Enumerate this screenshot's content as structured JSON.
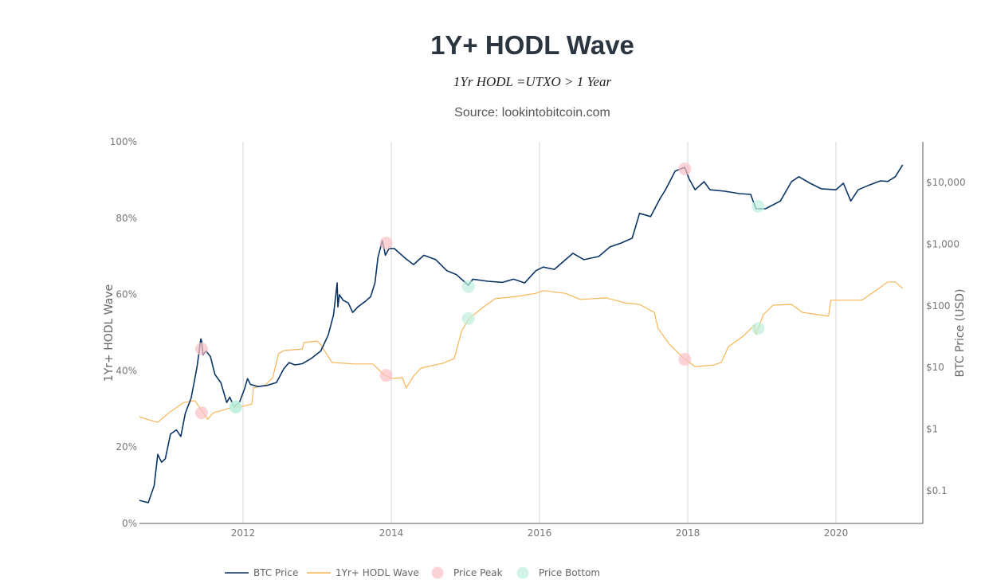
{
  "chart_data": {
    "type": "line",
    "title": "1Y+ HODL Wave",
    "subtitle": "1Yr HODL =UTXO > 1 Year",
    "source": "Source: lookintobitcoin.com",
    "xlabel": "",
    "ylabel_left": "1Yr+ HODL Wave",
    "ylabel_right": "BTC Price (USD)",
    "x_range": [
      2010.6,
      2021.05
    ],
    "x_ticks": [
      {
        "value": 2012,
        "label": "2012"
      },
      {
        "value": 2014,
        "label": "2014"
      },
      {
        "value": 2016,
        "label": "2016"
      },
      {
        "value": 2018,
        "label": "2018"
      },
      {
        "value": 2020,
        "label": "2020"
      }
    ],
    "y_left_range": [
      0,
      100
    ],
    "y_left_ticks": [
      {
        "value": 0,
        "label": "0%"
      },
      {
        "value": 20,
        "label": "20%"
      },
      {
        "value": 40,
        "label": "40%"
      },
      {
        "value": 60,
        "label": "60%"
      },
      {
        "value": 80,
        "label": "80%"
      },
      {
        "value": 100,
        "label": "100%"
      }
    ],
    "y_right_scale": "log",
    "y_right_range": [
      0.02,
      50000
    ],
    "y_right_ticks": [
      {
        "value": 0.1,
        "label": "$0.1"
      },
      {
        "value": 1,
        "label": "$1"
      },
      {
        "value": 10,
        "label": "$10"
      },
      {
        "value": 100,
        "label": "$100"
      },
      {
        "value": 1000,
        "label": "$1,000"
      },
      {
        "value": 10000,
        "label": "$10,000"
      }
    ],
    "grid": "vertical",
    "legend_position": "bottom-center",
    "series": [
      {
        "name": "BTC Price",
        "axis": "right",
        "color": "#0b3565",
        "points": [
          [
            2010.6,
            0.07
          ],
          [
            2010.72,
            0.064
          ],
          [
            2010.8,
            0.12
          ],
          [
            2010.85,
            0.39
          ],
          [
            2010.9,
            0.29
          ],
          [
            2010.95,
            0.33
          ],
          [
            2011.02,
            0.83
          ],
          [
            2011.1,
            0.97
          ],
          [
            2011.16,
            0.76
          ],
          [
            2011.22,
            1.8
          ],
          [
            2011.3,
            3.2
          ],
          [
            2011.38,
            10.3
          ],
          [
            2011.43,
            29
          ],
          [
            2011.44,
            27
          ],
          [
            2011.46,
            16
          ],
          [
            2011.5,
            18.5
          ],
          [
            2011.56,
            15
          ],
          [
            2011.62,
            7.7
          ],
          [
            2011.7,
            5.7
          ],
          [
            2011.78,
            2.7
          ],
          [
            2011.82,
            3.3
          ],
          [
            2011.88,
            2.3
          ],
          [
            2011.95,
            2.7
          ],
          [
            2012.02,
            4.5
          ],
          [
            2012.06,
            6.6
          ],
          [
            2012.1,
            5.3
          ],
          [
            2012.2,
            4.9
          ],
          [
            2012.32,
            5.1
          ],
          [
            2012.45,
            5.7
          ],
          [
            2012.55,
            9.5
          ],
          [
            2012.62,
            12
          ],
          [
            2012.7,
            11
          ],
          [
            2012.8,
            11.5
          ],
          [
            2012.92,
            14
          ],
          [
            2013.05,
            18.5
          ],
          [
            2013.15,
            34
          ],
          [
            2013.22,
            71
          ],
          [
            2013.27,
            235
          ],
          [
            2013.28,
            96
          ],
          [
            2013.3,
            151
          ],
          [
            2013.35,
            123
          ],
          [
            2013.42,
            111
          ],
          [
            2013.48,
            78
          ],
          [
            2013.55,
            96
          ],
          [
            2013.65,
            118
          ],
          [
            2013.72,
            140
          ],
          [
            2013.78,
            235
          ],
          [
            2013.82,
            608
          ],
          [
            2013.88,
            1140
          ],
          [
            2013.92,
            660
          ],
          [
            2013.97,
            850
          ],
          [
            2014.04,
            850
          ],
          [
            2014.2,
            575
          ],
          [
            2014.3,
            465
          ],
          [
            2014.44,
            660
          ],
          [
            2014.6,
            560
          ],
          [
            2014.75,
            370
          ],
          [
            2014.88,
            320
          ],
          [
            2015.04,
            215
          ],
          [
            2015.1,
            270
          ],
          [
            2015.3,
            250
          ],
          [
            2015.5,
            240
          ],
          [
            2015.65,
            270
          ],
          [
            2015.8,
            235
          ],
          [
            2015.95,
            370
          ],
          [
            2016.05,
            425
          ],
          [
            2016.2,
            390
          ],
          [
            2016.45,
            710
          ],
          [
            2016.6,
            560
          ],
          [
            2016.8,
            630
          ],
          [
            2016.95,
            900
          ],
          [
            2017.1,
            1040
          ],
          [
            2017.25,
            1250
          ],
          [
            2017.35,
            3150
          ],
          [
            2017.5,
            2800
          ],
          [
            2017.62,
            5330
          ],
          [
            2017.7,
            7600
          ],
          [
            2017.83,
            15300
          ],
          [
            2017.96,
            17600
          ],
          [
            2018.02,
            11300
          ],
          [
            2018.1,
            7600
          ],
          [
            2018.22,
            10300
          ],
          [
            2018.3,
            7600
          ],
          [
            2018.5,
            7200
          ],
          [
            2018.7,
            6600
          ],
          [
            2018.85,
            6400
          ],
          [
            2018.92,
            3750
          ],
          [
            2019.05,
            3750
          ],
          [
            2019.25,
            5000
          ],
          [
            2019.4,
            10300
          ],
          [
            2019.5,
            12400
          ],
          [
            2019.65,
            9700
          ],
          [
            2019.8,
            7900
          ],
          [
            2020.0,
            7600
          ],
          [
            2020.1,
            9700
          ],
          [
            2020.2,
            5000
          ],
          [
            2020.3,
            7600
          ],
          [
            2020.45,
            9100
          ],
          [
            2020.6,
            10600
          ],
          [
            2020.7,
            10400
          ],
          [
            2020.8,
            12400
          ],
          [
            2020.9,
            19300
          ]
        ]
      },
      {
        "name": "1Yr+ HODL Wave",
        "axis": "left",
        "color": "#f7b556",
        "points": [
          [
            2010.6,
            28.0
          ],
          [
            2010.7,
            27.3
          ],
          [
            2010.85,
            26.5
          ],
          [
            2011.0,
            29.0
          ],
          [
            2011.2,
            31.7
          ],
          [
            2011.35,
            32.2
          ],
          [
            2011.45,
            29.4
          ],
          [
            2011.52,
            27.3
          ],
          [
            2011.6,
            29.0
          ],
          [
            2011.8,
            30.1
          ],
          [
            2012.0,
            30.7
          ],
          [
            2012.12,
            31.3
          ],
          [
            2012.14,
            35.5
          ],
          [
            2012.3,
            36.3
          ],
          [
            2012.4,
            38.2
          ],
          [
            2012.48,
            44.5
          ],
          [
            2012.55,
            45.3
          ],
          [
            2012.8,
            45.7
          ],
          [
            2012.82,
            47.4
          ],
          [
            2013.0,
            47.8
          ],
          [
            2013.05,
            46.8
          ],
          [
            2013.2,
            42.2
          ],
          [
            2013.5,
            41.8
          ],
          [
            2013.75,
            41.8
          ],
          [
            2013.9,
            39.0
          ],
          [
            2014.0,
            38.0
          ],
          [
            2014.15,
            38.2
          ],
          [
            2014.2,
            35.5
          ],
          [
            2014.3,
            38.6
          ],
          [
            2014.4,
            40.7
          ],
          [
            2014.7,
            42.0
          ],
          [
            2014.85,
            43.2
          ],
          [
            2014.95,
            50.5
          ],
          [
            2015.05,
            53.7
          ],
          [
            2015.25,
            56.8
          ],
          [
            2015.4,
            58.9
          ],
          [
            2015.7,
            59.5
          ],
          [
            2015.95,
            60.3
          ],
          [
            2016.05,
            61.0
          ],
          [
            2016.35,
            60.3
          ],
          [
            2016.55,
            58.7
          ],
          [
            2016.9,
            59.1
          ],
          [
            2017.15,
            57.8
          ],
          [
            2017.35,
            57.4
          ],
          [
            2017.55,
            55.3
          ],
          [
            2017.6,
            51.1
          ],
          [
            2017.75,
            47.0
          ],
          [
            2017.95,
            43.2
          ],
          [
            2018.1,
            41.1
          ],
          [
            2018.35,
            41.5
          ],
          [
            2018.45,
            42.2
          ],
          [
            2018.55,
            46.3
          ],
          [
            2018.75,
            49.1
          ],
          [
            2018.9,
            52.0
          ],
          [
            2018.92,
            49.5
          ],
          [
            2019.02,
            54.7
          ],
          [
            2019.15,
            57.2
          ],
          [
            2019.4,
            57.4
          ],
          [
            2019.55,
            55.3
          ],
          [
            2019.9,
            54.3
          ],
          [
            2019.93,
            58.5
          ],
          [
            2020.1,
            58.5
          ],
          [
            2020.35,
            58.5
          ],
          [
            2020.55,
            61.2
          ],
          [
            2020.7,
            63.3
          ],
          [
            2020.8,
            63.3
          ],
          [
            2020.9,
            61.6
          ]
        ]
      }
    ],
    "markers": [
      {
        "name": "Price Peak",
        "color": "#f9c0c6",
        "points": [
          {
            "x": 2011.44,
            "axis": "right",
            "y": 20
          },
          {
            "x": 2011.44,
            "axis": "left",
            "y": 29.0
          },
          {
            "x": 2013.93,
            "axis": "right",
            "y": 1040
          },
          {
            "x": 2013.93,
            "axis": "left",
            "y": 38.8
          },
          {
            "x": 2017.96,
            "axis": "right",
            "y": 16600
          },
          {
            "x": 2017.96,
            "axis": "left",
            "y": 43.0
          }
        ]
      },
      {
        "name": "Price Bottom",
        "color": "#bdf0dc",
        "points": [
          {
            "x": 2011.9,
            "axis": "right",
            "y": 2.3
          },
          {
            "x": 2011.9,
            "axis": "left",
            "y": 30.5
          },
          {
            "x": 2015.04,
            "axis": "right",
            "y": 205
          },
          {
            "x": 2015.04,
            "axis": "left",
            "y": 53.7
          },
          {
            "x": 2018.95,
            "axis": "right",
            "y": 4100
          },
          {
            "x": 2018.95,
            "axis": "left",
            "y": 51.1
          }
        ]
      }
    ],
    "legend": [
      {
        "label": "BTC Price",
        "kind": "line",
        "color": "#0b3565"
      },
      {
        "label": "1Yr+ HODL Wave",
        "kind": "line",
        "color": "#f7b556"
      },
      {
        "label": "Price Peak",
        "kind": "marker",
        "color": "#f9c0c6"
      },
      {
        "label": "Price Bottom",
        "kind": "marker",
        "color": "#bdf0dc"
      }
    ]
  }
}
